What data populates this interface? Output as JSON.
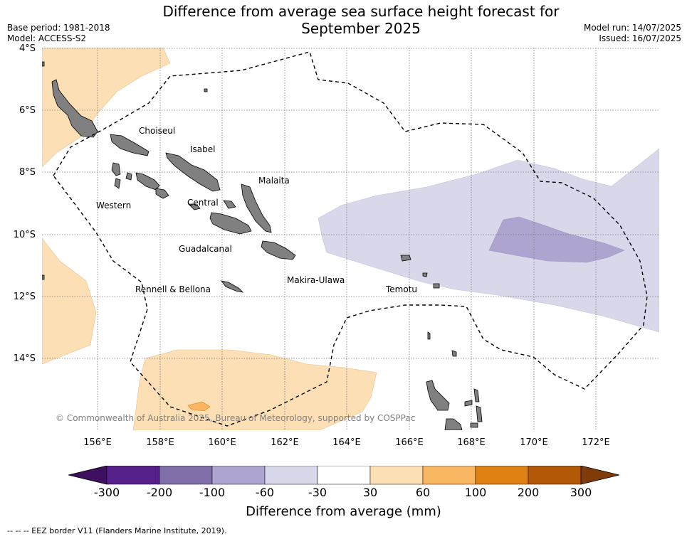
{
  "title_line1": "Difference from average sea surface height forecast for",
  "title_line2": "September 2025",
  "meta_left": {
    "base_period": "Base period: 1981-2018",
    "model": "Model: ACCESS-S2"
  },
  "meta_right": {
    "model_run": "Model run: 14/07/2025",
    "issued": "Issued: 16/07/2025"
  },
  "lat_labels": [
    "4°S",
    "6°S",
    "8°S",
    "10°S",
    "12°S",
    "14°S"
  ],
  "lon_labels": [
    "156°E",
    "158°E",
    "160°E",
    "162°E",
    "164°E",
    "166°E",
    "168°E",
    "170°E",
    "172°E"
  ],
  "province_labels": {
    "choiseul": "Choiseul",
    "isabel": "Isabel",
    "malaita": "Malaita",
    "western": "Western",
    "central": "Central",
    "guadalcanal": "Guadalcanal",
    "makira": "Makira-Ulawa",
    "rennell": "Rennell & Bellona",
    "temotu": "Temotu"
  },
  "copyright": "© Commonwealth of Australia 2025, Bureau of Meteorology, supported by COSPPac",
  "colorbar": {
    "ticks": [
      "-300",
      "-200",
      "-100",
      "-60",
      "-30",
      "30",
      "60",
      "100",
      "200",
      "300"
    ],
    "colors": [
      "#3f0f5f",
      "#56208a",
      "#7f6ea8",
      "#ada4d0",
      "#d8d8ea",
      "#ffffff",
      "#fddfb5",
      "#f9b662",
      "#e08114",
      "#b35806",
      "#7f3b08"
    ],
    "label": "Difference from average (mm)"
  },
  "footer": "--  --  -- EEZ border V11 (Flanders Marine Institute, 2019)."
}
